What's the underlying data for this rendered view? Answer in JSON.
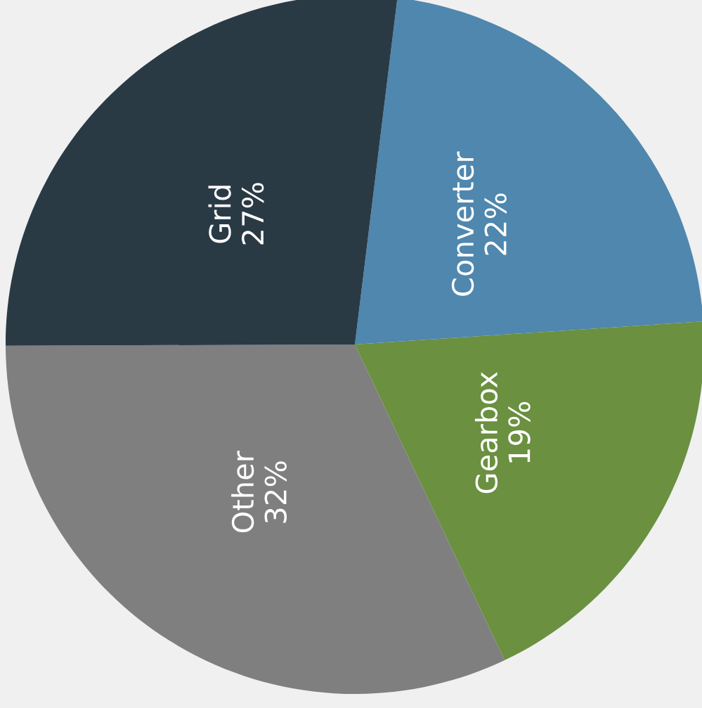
{
  "chart_data": {
    "type": "pie",
    "categories": [
      "Converter",
      "Gearbox",
      "Other",
      "Grid"
    ],
    "values": [
      22,
      19,
      32,
      27
    ],
    "value_labels": [
      "22%",
      "19%",
      "32%",
      "27%"
    ],
    "colors": [
      "#4f87ae",
      "#6a9040",
      "#7f7f7f",
      "#2a3a45"
    ],
    "legend": false
  }
}
